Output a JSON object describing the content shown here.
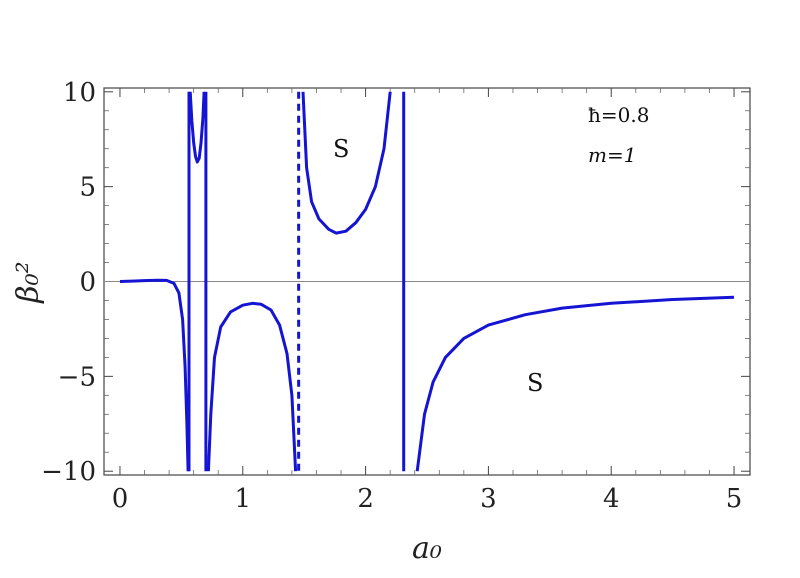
{
  "chart_data": {
    "type": "line",
    "title": "",
    "xlabel": "a₀",
    "ylabel": "β₀²",
    "xlim": [
      -0.13,
      5.13
    ],
    "ylim": [
      -10.2,
      10.2
    ],
    "x_ticks": [
      0,
      1,
      2,
      3,
      4,
      5
    ],
    "x_tick_labels": [
      "0",
      "1",
      "2",
      "3",
      "4",
      "5"
    ],
    "y_ticks": [
      -10,
      -5,
      0,
      5,
      10
    ],
    "y_tick_labels": [
      "−10",
      "−5",
      "0",
      "5",
      "10"
    ],
    "grid": false,
    "frame": true,
    "zero_line": true,
    "color": "#1414d2",
    "annotations": [
      {
        "text": "ħ=0.8"
      },
      {
        "text": "m=1"
      }
    ],
    "region_labels": [
      "S",
      "S"
    ],
    "asymptotes": [
      {
        "x": 1.455,
        "style": "dashed"
      },
      {
        "x": 2.31,
        "style": "solid"
      }
    ],
    "series": [
      {
        "segment": "left-plateau",
        "points": [
          [
            0.0,
            0.0
          ],
          [
            0.1,
            0.02
          ],
          [
            0.2,
            0.05
          ],
          [
            0.3,
            0.07
          ],
          [
            0.38,
            0.06
          ],
          [
            0.44,
            -0.1
          ],
          [
            0.48,
            -0.6
          ],
          [
            0.51,
            -2.0
          ],
          [
            0.53,
            -4.5
          ],
          [
            0.545,
            -7.5
          ],
          [
            0.555,
            -10
          ]
        ]
      },
      {
        "segment": "pole-1",
        "points": [
          [
            0.562,
            -10
          ],
          [
            0.562,
            10
          ]
        ]
      },
      {
        "segment": "upper-dip",
        "points": [
          [
            0.572,
            10
          ],
          [
            0.585,
            8.5
          ],
          [
            0.6,
            7.3
          ],
          [
            0.615,
            6.6
          ],
          [
            0.63,
            6.3
          ],
          [
            0.645,
            6.5
          ],
          [
            0.66,
            7.3
          ],
          [
            0.675,
            8.6
          ],
          [
            0.685,
            10
          ]
        ]
      },
      {
        "segment": "pole-2",
        "points": [
          [
            0.7,
            10
          ],
          [
            0.7,
            -10
          ]
        ]
      },
      {
        "segment": "lower-well",
        "points": [
          [
            0.72,
            -10
          ],
          [
            0.74,
            -7.0
          ],
          [
            0.77,
            -4.0
          ],
          [
            0.82,
            -2.4
          ],
          [
            0.9,
            -1.6
          ],
          [
            1.0,
            -1.25
          ],
          [
            1.08,
            -1.15
          ],
          [
            1.15,
            -1.2
          ],
          [
            1.23,
            -1.5
          ],
          [
            1.3,
            -2.3
          ],
          [
            1.36,
            -3.8
          ],
          [
            1.4,
            -6.0
          ],
          [
            1.43,
            -10
          ]
        ]
      },
      {
        "segment": "upper-well",
        "points": [
          [
            1.49,
            10
          ],
          [
            1.52,
            6.0
          ],
          [
            1.56,
            4.2
          ],
          [
            1.62,
            3.3
          ],
          [
            1.7,
            2.75
          ],
          [
            1.76,
            2.55
          ],
          [
            1.84,
            2.65
          ],
          [
            1.92,
            3.1
          ],
          [
            2.0,
            3.8
          ],
          [
            2.08,
            5.0
          ],
          [
            2.15,
            7.0
          ],
          [
            2.2,
            10
          ]
        ]
      },
      {
        "segment": "pole-3",
        "points": [
          [
            2.31,
            10
          ],
          [
            2.31,
            -10
          ]
        ]
      },
      {
        "segment": "right-tail",
        "points": [
          [
            2.42,
            -10
          ],
          [
            2.48,
            -7.0
          ],
          [
            2.55,
            -5.3
          ],
          [
            2.65,
            -4.0
          ],
          [
            2.8,
            -3.0
          ],
          [
            3.0,
            -2.3
          ],
          [
            3.3,
            -1.75
          ],
          [
            3.6,
            -1.4
          ],
          [
            4.0,
            -1.15
          ],
          [
            4.5,
            -0.95
          ],
          [
            5.0,
            -0.83
          ]
        ]
      }
    ]
  }
}
